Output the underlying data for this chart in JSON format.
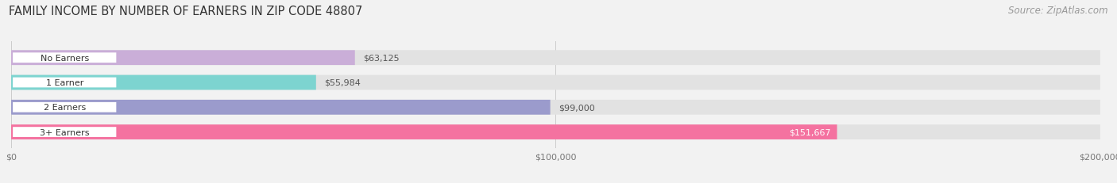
{
  "title": "FAMILY INCOME BY NUMBER OF EARNERS IN ZIP CODE 48807",
  "source": "Source: ZipAtlas.com",
  "categories": [
    "No Earners",
    "1 Earner",
    "2 Earners",
    "3+ Earners"
  ],
  "values": [
    63125,
    55984,
    99000,
    151667
  ],
  "bar_colors": [
    "#caaed8",
    "#7dd4d0",
    "#9b9bcc",
    "#f472a0"
  ],
  "label_colors": [
    "#555555",
    "#555555",
    "#555555",
    "#ffffff"
  ],
  "value_labels": [
    "$63,125",
    "$55,984",
    "$99,000",
    "$151,667"
  ],
  "xlim": [
    0,
    200000
  ],
  "xticklabels": [
    "$0",
    "$100,000",
    "$200,000"
  ],
  "background_color": "#f2f2f2",
  "bar_bg_color": "#e2e2e2",
  "title_fontsize": 10.5,
  "source_fontsize": 8.5
}
